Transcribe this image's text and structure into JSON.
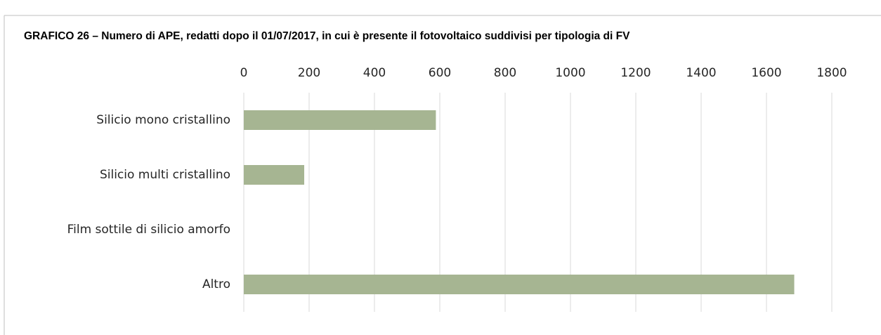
{
  "chart_data": {
    "type": "barh",
    "title": "GRAFICO 26 – Numero di APE, redatti dopo il 01/07/2017, in cui è presente il fotovoltaico suddivisi per tipologia di FV",
    "categories": [
      "Silicio mono cristallino",
      "Silicio multi cristallino",
      "Film sottile di silicio amorfo",
      "Altro"
    ],
    "values": [
      588,
      185,
      0,
      1685
    ],
    "color": "#a6b592",
    "xlim": [
      0,
      1800
    ],
    "xticks": [
      0,
      200,
      400,
      600,
      800,
      1000,
      1200,
      1400,
      1600,
      1800
    ],
    "grid": true
  }
}
